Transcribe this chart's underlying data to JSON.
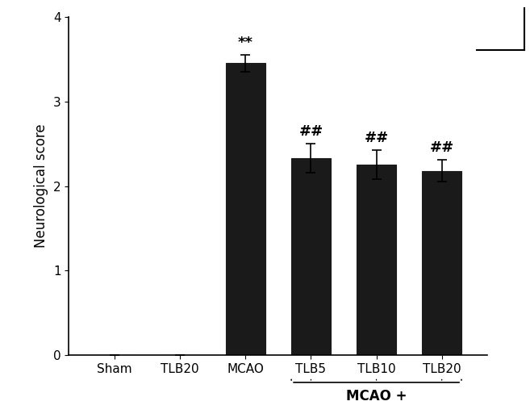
{
  "categories": [
    "Sham",
    "TLB20",
    "MCAO",
    "TLB5",
    "TLB10",
    "TLB20"
  ],
  "values": [
    0.0,
    0.0,
    3.45,
    2.33,
    2.25,
    2.18
  ],
  "errors": [
    0.0,
    0.0,
    0.1,
    0.17,
    0.17,
    0.13
  ],
  "bar_color": "#1a1a1a",
  "ylabel": "Neurological score",
  "ylim": [
    0,
    4
  ],
  "yticks": [
    0,
    1,
    2,
    3,
    4
  ],
  "bar_width": 0.6,
  "bracket_label": "MCAO +",
  "background_color": "#ffffff",
  "capsize": 4,
  "annotation_fontsize": 13,
  "ylabel_fontsize": 12,
  "tick_fontsize": 11,
  "bracket_fontsize": 12
}
